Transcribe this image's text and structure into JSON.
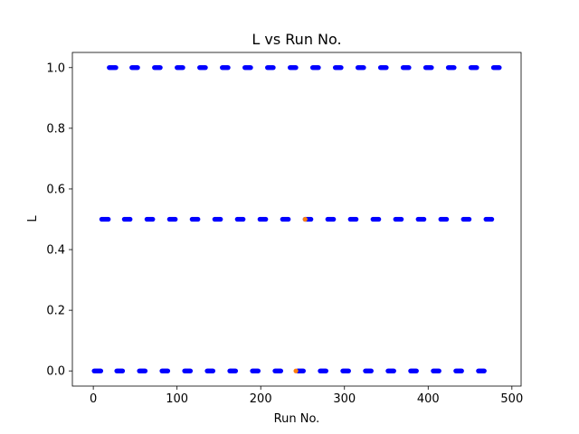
{
  "chart_data": {
    "type": "scatter",
    "title": "L vs Run No.",
    "xlabel": "Run No.",
    "ylabel": "L",
    "xlim": [
      -25,
      511
    ],
    "ylim": [
      -0.05,
      1.05
    ],
    "xticks": [
      0,
      100,
      200,
      300,
      400,
      500
    ],
    "yticks": [
      0.0,
      0.2,
      0.4,
      0.6,
      0.8,
      1.0
    ],
    "xtick_labels": [
      "0",
      "100",
      "200",
      "300",
      "400",
      "500"
    ],
    "ytick_labels": [
      "0.0",
      "0.2",
      "0.4",
      "0.6",
      "0.8",
      "1.0"
    ],
    "grid": false,
    "legend": "none",
    "series": [
      {
        "color": "#0000ff",
        "segments": [
          {
            "y": 0.0,
            "x": [
              1,
              2,
              3,
              4,
              5,
              6,
              7,
              8,
              9
            ]
          },
          {
            "y": 0.0,
            "x": [
              28,
              29,
              30,
              31,
              32,
              33,
              34,
              35
            ]
          },
          {
            "y": 0.0,
            "x": [
              55,
              56,
              57,
              58,
              59,
              60,
              61,
              62
            ]
          },
          {
            "y": 0.0,
            "x": [
              82,
              83,
              84,
              85,
              86,
              87,
              88,
              89
            ]
          },
          {
            "y": 0.0,
            "x": [
              109,
              110,
              111,
              112,
              113,
              114,
              115,
              116
            ]
          },
          {
            "y": 0.0,
            "x": [
              136,
              137,
              138,
              139,
              140,
              141,
              142,
              143
            ]
          },
          {
            "y": 0.0,
            "x": [
              163,
              164,
              165,
              166,
              167,
              168,
              169,
              170
            ]
          },
          {
            "y": 0.0,
            "x": [
              190,
              191,
              192,
              193,
              194,
              195,
              196,
              197
            ]
          },
          {
            "y": 0.0,
            "x": [
              217,
              218,
              219,
              220,
              221,
              222,
              223,
              224
            ]
          },
          {
            "y": 0.0,
            "x": [
              244,
              245,
              246,
              247,
              248,
              249,
              250,
              251
            ]
          },
          {
            "y": 0.0,
            "x": [
              271,
              272,
              273,
              274,
              275,
              276,
              277,
              278
            ]
          },
          {
            "y": 0.0,
            "x": [
              298,
              299,
              300,
              301,
              302,
              303,
              304,
              305
            ]
          },
          {
            "y": 0.0,
            "x": [
              325,
              326,
              327,
              328,
              329,
              330,
              331,
              332
            ]
          },
          {
            "y": 0.0,
            "x": [
              352,
              353,
              354,
              355,
              356,
              357,
              358,
              359
            ]
          },
          {
            "y": 0.0,
            "x": [
              379,
              380,
              381,
              382,
              383,
              384,
              385,
              386
            ]
          },
          {
            "y": 0.0,
            "x": [
              406,
              407,
              408,
              409,
              410,
              411,
              412,
              413
            ]
          },
          {
            "y": 0.0,
            "x": [
              433,
              434,
              435,
              436,
              437,
              438,
              439,
              440
            ]
          },
          {
            "y": 0.0,
            "x": [
              460,
              461,
              462,
              463,
              464,
              465,
              466,
              467
            ]
          },
          {
            "y": 0.5,
            "x": [
              10,
              11,
              12,
              13,
              14,
              15,
              16,
              17,
              18
            ]
          },
          {
            "y": 0.5,
            "x": [
              37,
              38,
              39,
              40,
              41,
              42,
              43,
              44
            ]
          },
          {
            "y": 0.5,
            "x": [
              64,
              65,
              66,
              67,
              68,
              69,
              70,
              71
            ]
          },
          {
            "y": 0.5,
            "x": [
              91,
              92,
              93,
              94,
              95,
              96,
              97,
              98
            ]
          },
          {
            "y": 0.5,
            "x": [
              118,
              119,
              120,
              121,
              122,
              123,
              124,
              125
            ]
          },
          {
            "y": 0.5,
            "x": [
              145,
              146,
              147,
              148,
              149,
              150,
              151,
              152
            ]
          },
          {
            "y": 0.5,
            "x": [
              172,
              173,
              174,
              175,
              176,
              177,
              178,
              179
            ]
          },
          {
            "y": 0.5,
            "x": [
              199,
              200,
              201,
              202,
              203,
              204,
              205,
              206
            ]
          },
          {
            "y": 0.5,
            "x": [
              226,
              227,
              228,
              229,
              230,
              231,
              232,
              233
            ]
          },
          {
            "y": 0.5,
            "x": [
              253,
              254,
              255,
              256,
              257,
              258,
              259,
              260
            ]
          },
          {
            "y": 0.5,
            "x": [
              280,
              281,
              282,
              283,
              284,
              285,
              286,
              287
            ]
          },
          {
            "y": 0.5,
            "x": [
              307,
              308,
              309,
              310,
              311,
              312,
              313,
              314
            ]
          },
          {
            "y": 0.5,
            "x": [
              334,
              335,
              336,
              337,
              338,
              339,
              340,
              341
            ]
          },
          {
            "y": 0.5,
            "x": [
              361,
              362,
              363,
              364,
              365,
              366,
              367,
              368
            ]
          },
          {
            "y": 0.5,
            "x": [
              388,
              389,
              390,
              391,
              392,
              393,
              394,
              395
            ]
          },
          {
            "y": 0.5,
            "x": [
              415,
              416,
              417,
              418,
              419,
              420,
              421,
              422
            ]
          },
          {
            "y": 0.5,
            "x": [
              442,
              443,
              444,
              445,
              446,
              447,
              448,
              449
            ]
          },
          {
            "y": 0.5,
            "x": [
              469,
              470,
              471,
              472,
              473,
              474,
              475,
              476
            ]
          },
          {
            "y": 1.0,
            "x": [
              19,
              20,
              21,
              22,
              23,
              24,
              25,
              26,
              27
            ]
          },
          {
            "y": 1.0,
            "x": [
              46,
              47,
              48,
              49,
              50,
              51,
              52,
              53
            ]
          },
          {
            "y": 1.0,
            "x": [
              73,
              74,
              75,
              76,
              77,
              78,
              79,
              80
            ]
          },
          {
            "y": 1.0,
            "x": [
              100,
              101,
              102,
              103,
              104,
              105,
              106,
              107
            ]
          },
          {
            "y": 1.0,
            "x": [
              127,
              128,
              129,
              130,
              131,
              132,
              133,
              134
            ]
          },
          {
            "y": 1.0,
            "x": [
              154,
              155,
              156,
              157,
              158,
              159,
              160,
              161
            ]
          },
          {
            "y": 1.0,
            "x": [
              181,
              182,
              183,
              184,
              185,
              186,
              187,
              188
            ]
          },
          {
            "y": 1.0,
            "x": [
              208,
              209,
              210,
              211,
              212,
              213,
              214,
              215
            ]
          },
          {
            "y": 1.0,
            "x": [
              235,
              236,
              237,
              238,
              239,
              240,
              241,
              242
            ]
          },
          {
            "y": 1.0,
            "x": [
              262,
              263,
              264,
              265,
              266,
              267,
              268,
              269
            ]
          },
          {
            "y": 1.0,
            "x": [
              289,
              290,
              291,
              292,
              293,
              294,
              295,
              296
            ]
          },
          {
            "y": 1.0,
            "x": [
              316,
              317,
              318,
              319,
              320,
              321,
              322,
              323
            ]
          },
          {
            "y": 1.0,
            "x": [
              343,
              344,
              345,
              346,
              347,
              348,
              349,
              350
            ]
          },
          {
            "y": 1.0,
            "x": [
              370,
              371,
              372,
              373,
              374,
              375,
              376,
              377
            ]
          },
          {
            "y": 1.0,
            "x": [
              397,
              398,
              399,
              400,
              401,
              402,
              403,
              404
            ]
          },
          {
            "y": 1.0,
            "x": [
              424,
              425,
              426,
              427,
              428,
              429,
              430,
              431
            ]
          },
          {
            "y": 1.0,
            "x": [
              451,
              452,
              453,
              454,
              455,
              456,
              457,
              458
            ]
          },
          {
            "y": 1.0,
            "x": [
              478,
              479,
              480,
              481,
              482,
              483,
              484,
              485
            ]
          }
        ]
      },
      {
        "color": "#ff7f0e",
        "points": [
          {
            "x": 242,
            "y": 0.0
          },
          {
            "x": 253,
            "y": 0.5
          }
        ]
      }
    ]
  }
}
